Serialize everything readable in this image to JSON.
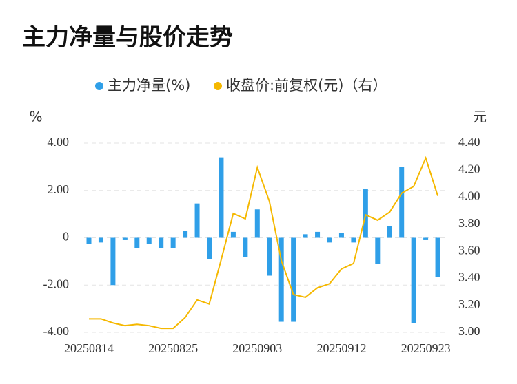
{
  "chart_data": {
    "type": "bar_line",
    "title": "主力净量与股价走势",
    "yaxis_label": "%",
    "y2axis_label": "元",
    "categories": [
      "20250814",
      null,
      null,
      null,
      null,
      null,
      null,
      "20250825",
      null,
      null,
      null,
      null,
      null,
      null,
      "20250903",
      null,
      null,
      null,
      null,
      null,
      null,
      "20250912",
      null,
      null,
      null,
      null,
      null,
      null,
      "20250923",
      null
    ],
    "series": [
      {
        "name": "主力净量(%)",
        "type": "bar",
        "color": "#2f9fe8",
        "values": [
          -0.25,
          -0.2,
          -2.0,
          -0.1,
          -0.45,
          -0.25,
          -0.45,
          -0.45,
          0.3,
          1.45,
          -0.9,
          3.4,
          0.25,
          -0.8,
          1.2,
          -1.6,
          -3.55,
          -3.55,
          0.15,
          0.25,
          -0.2,
          0.2,
          -0.2,
          2.05,
          -1.1,
          0.5,
          3.0,
          -3.6,
          -0.1,
          -1.65
        ]
      },
      {
        "name": "收盘价:前复权(元)（右）",
        "type": "line",
        "axis": "y2",
        "color": "#f5b800",
        "values": [
          3.1,
          3.1,
          3.07,
          3.05,
          3.06,
          3.05,
          3.03,
          3.03,
          3.11,
          3.24,
          3.21,
          3.54,
          3.88,
          3.84,
          4.22,
          3.97,
          3.53,
          3.28,
          3.26,
          3.33,
          3.36,
          3.47,
          3.51,
          3.87,
          3.83,
          3.89,
          4.03,
          4.08,
          4.29,
          4.01
        ]
      }
    ],
    "ylim": [
      -4,
      4
    ],
    "yticks": [
      {
        "value": -4,
        "label": "-4.00"
      },
      {
        "value": -2,
        "label": "-2.00"
      },
      0,
      {
        "value": 2,
        "label": "2.00"
      },
      {
        "value": 4,
        "label": "4.00"
      }
    ],
    "y2lim": [
      3.0,
      4.4
    ],
    "y2ticks": [
      {
        "value": 3.0,
        "label": "3.00"
      },
      {
        "value": 3.2,
        "label": "3.20"
      },
      {
        "value": 3.4,
        "label": "3.40"
      },
      {
        "value": 3.6,
        "label": "3.60"
      },
      {
        "value": 3.8,
        "label": "3.80"
      },
      {
        "value": 4.0,
        "label": "4.00"
      },
      {
        "value": 4.2,
        "label": "4.20"
      },
      {
        "value": 4.4,
        "label": "4.40"
      }
    ],
    "grid": true,
    "legend": "top"
  }
}
